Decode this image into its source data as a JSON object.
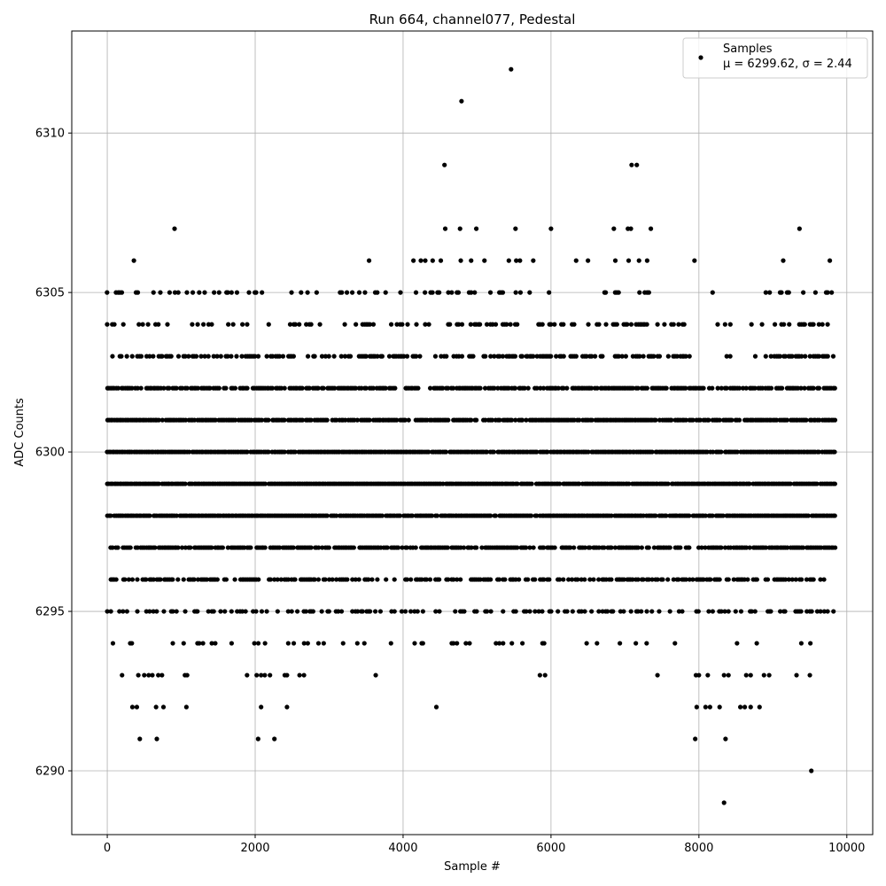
{
  "chart_data": {
    "type": "scatter",
    "title": "Run 664, channel077, Pedestal",
    "xlabel": "Sample #",
    "ylabel": "ADC Counts",
    "xlim": [
      -480,
      10350
    ],
    "ylim": [
      6288.0,
      6313.2
    ],
    "xticks": [
      0,
      2000,
      4000,
      6000,
      8000,
      10000
    ],
    "yticks": [
      6290,
      6295,
      6300,
      6305,
      6310
    ],
    "grid": true,
    "legend_position": "top-right",
    "marker_color": "#000000",
    "series": [
      {
        "name": "Samples",
        "legend_stats": "μ = 6299.62, σ = 2.44",
        "x_range": [
          0,
          9850
        ],
        "bands": [
          {
            "y": 6298,
            "density": 0.95
          },
          {
            "y": 6299,
            "density": 0.97
          },
          {
            "y": 6300,
            "density": 0.95
          },
          {
            "y": 6301,
            "density": 0.88
          },
          {
            "y": 6302,
            "density": 0.75
          },
          {
            "y": 6297,
            "density": 0.8
          },
          {
            "y": 6296,
            "density": 0.55
          },
          {
            "y": 6303,
            "density": 0.5
          },
          {
            "y": 6304,
            "density": 0.3
          },
          {
            "y": 6295,
            "density": 0.3
          },
          {
            "y": 6305,
            "density": 0.22
          },
          {
            "y": 6294,
            "density": 0.1
          }
        ],
        "points": [
          {
            "x": 5460,
            "y": 6312
          },
          {
            "x": 4790,
            "y": 6311
          },
          {
            "x": 4560,
            "y": 6309
          },
          {
            "x": 7090,
            "y": 6309
          },
          {
            "x": 7160,
            "y": 6309
          },
          {
            "x": 910,
            "y": 6307
          },
          {
            "x": 4570,
            "y": 6307
          },
          {
            "x": 4770,
            "y": 6307
          },
          {
            "x": 4990,
            "y": 6307
          },
          {
            "x": 5520,
            "y": 6307
          },
          {
            "x": 6000,
            "y": 6307
          },
          {
            "x": 6850,
            "y": 6307
          },
          {
            "x": 7040,
            "y": 6307
          },
          {
            "x": 7080,
            "y": 6307
          },
          {
            "x": 7350,
            "y": 6307
          },
          {
            "x": 9360,
            "y": 6307
          },
          {
            "x": 360,
            "y": 6306
          },
          {
            "x": 3540,
            "y": 6306
          },
          {
            "x": 4140,
            "y": 6306
          },
          {
            "x": 4240,
            "y": 6306
          },
          {
            "x": 4300,
            "y": 6306
          },
          {
            "x": 4400,
            "y": 6306
          },
          {
            "x": 4510,
            "y": 6306
          },
          {
            "x": 4780,
            "y": 6306
          },
          {
            "x": 4920,
            "y": 6306
          },
          {
            "x": 5100,
            "y": 6306
          },
          {
            "x": 5430,
            "y": 6306
          },
          {
            "x": 5530,
            "y": 6306
          },
          {
            "x": 5580,
            "y": 6306
          },
          {
            "x": 5760,
            "y": 6306
          },
          {
            "x": 6340,
            "y": 6306
          },
          {
            "x": 6500,
            "y": 6306
          },
          {
            "x": 6870,
            "y": 6306
          },
          {
            "x": 7050,
            "y": 6306
          },
          {
            "x": 7190,
            "y": 6306
          },
          {
            "x": 7300,
            "y": 6306
          },
          {
            "x": 7940,
            "y": 6306
          },
          {
            "x": 9140,
            "y": 6306
          },
          {
            "x": 9770,
            "y": 6306
          },
          {
            "x": 200,
            "y": 6293
          },
          {
            "x": 420,
            "y": 6293
          },
          {
            "x": 500,
            "y": 6293
          },
          {
            "x": 560,
            "y": 6293
          },
          {
            "x": 610,
            "y": 6293
          },
          {
            "x": 690,
            "y": 6293
          },
          {
            "x": 740,
            "y": 6293
          },
          {
            "x": 1050,
            "y": 6293
          },
          {
            "x": 1080,
            "y": 6293
          },
          {
            "x": 1890,
            "y": 6293
          },
          {
            "x": 2020,
            "y": 6293
          },
          {
            "x": 2080,
            "y": 6293
          },
          {
            "x": 2130,
            "y": 6293
          },
          {
            "x": 2200,
            "y": 6293
          },
          {
            "x": 2400,
            "y": 6293
          },
          {
            "x": 2430,
            "y": 6293
          },
          {
            "x": 2600,
            "y": 6293
          },
          {
            "x": 2660,
            "y": 6293
          },
          {
            "x": 3630,
            "y": 6293
          },
          {
            "x": 5850,
            "y": 6293
          },
          {
            "x": 5920,
            "y": 6293
          },
          {
            "x": 7440,
            "y": 6293
          },
          {
            "x": 7960,
            "y": 6293
          },
          {
            "x": 8000,
            "y": 6293
          },
          {
            "x": 8120,
            "y": 6293
          },
          {
            "x": 8340,
            "y": 6293
          },
          {
            "x": 8400,
            "y": 6293
          },
          {
            "x": 8640,
            "y": 6293
          },
          {
            "x": 8700,
            "y": 6293
          },
          {
            "x": 8880,
            "y": 6293
          },
          {
            "x": 8950,
            "y": 6293
          },
          {
            "x": 9320,
            "y": 6293
          },
          {
            "x": 9500,
            "y": 6293
          },
          {
            "x": 340,
            "y": 6292
          },
          {
            "x": 400,
            "y": 6292
          },
          {
            "x": 660,
            "y": 6292
          },
          {
            "x": 760,
            "y": 6292
          },
          {
            "x": 1070,
            "y": 6292
          },
          {
            "x": 2080,
            "y": 6292
          },
          {
            "x": 2430,
            "y": 6292
          },
          {
            "x": 4450,
            "y": 6292
          },
          {
            "x": 7970,
            "y": 6292
          },
          {
            "x": 8090,
            "y": 6292
          },
          {
            "x": 8150,
            "y": 6292
          },
          {
            "x": 8280,
            "y": 6292
          },
          {
            "x": 8560,
            "y": 6292
          },
          {
            "x": 8620,
            "y": 6292
          },
          {
            "x": 8700,
            "y": 6292
          },
          {
            "x": 8820,
            "y": 6292
          },
          {
            "x": 440,
            "y": 6291
          },
          {
            "x": 670,
            "y": 6291
          },
          {
            "x": 2040,
            "y": 6291
          },
          {
            "x": 2260,
            "y": 6291
          },
          {
            "x": 7950,
            "y": 6291
          },
          {
            "x": 8360,
            "y": 6291
          },
          {
            "x": 9520,
            "y": 6290
          },
          {
            "x": 8340,
            "y": 6289
          }
        ]
      }
    ]
  }
}
